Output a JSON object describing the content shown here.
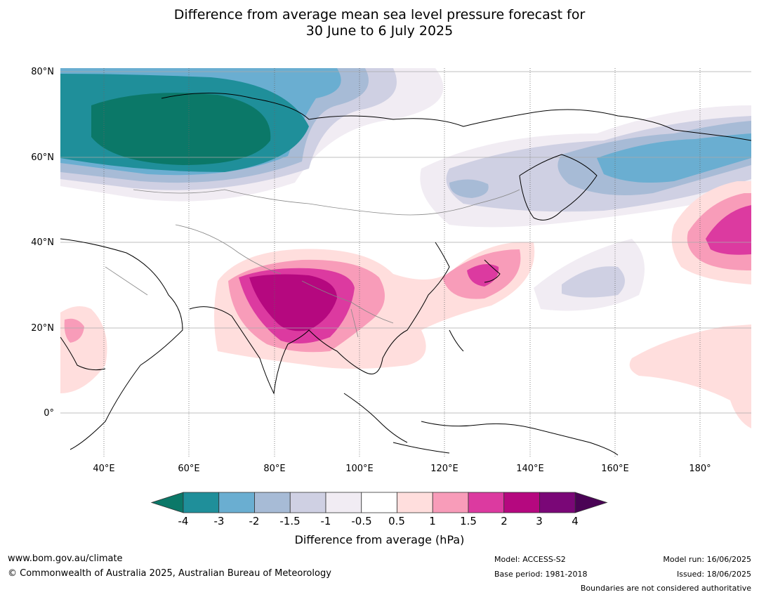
{
  "title": {
    "line1": "Difference from average mean sea level pressure forecast for",
    "line2": "30 June to 6 July 2025"
  },
  "map": {
    "lat_labels": [
      "80°N",
      "60°N",
      "40°N",
      "20°N",
      "0°"
    ],
    "lon_labels": [
      "40°E",
      "60°E",
      "80°E",
      "100°E",
      "120°E",
      "140°E",
      "160°E",
      "180°"
    ],
    "extent": {
      "lon_min": 30,
      "lon_max": 191,
      "lat_min": -10,
      "lat_max": 81
    }
  },
  "colorbar": {
    "ticks": [
      "-4",
      "-3",
      "-2",
      "-1.5",
      "-1",
      "-0.5",
      "0.5",
      "1",
      "1.5",
      "2",
      "3",
      "4"
    ],
    "colors": [
      "#0b7868",
      "#1f8f9a",
      "#6aaed1",
      "#a7bbd6",
      "#cfd0e3",
      "#f1ecf3",
      "#ffffff",
      "#ffdedd",
      "#f89cb9",
      "#dc3aa0",
      "#b5087f",
      "#7a0777",
      "#4a0355"
    ],
    "label": "Difference from average (hPa)"
  },
  "footer": {
    "website": "www.bom.gov.au/climate",
    "copyright": "© Commonwealth of Australia 2025, Australian Bureau of Meteorology",
    "model": "Model: ACCESS-S2",
    "base_period": "Base period: 1981-2018",
    "model_run": "Model run: 16/06/2025",
    "issued": "Issued: 18/06/2025",
    "disclaimer": "Boundaries are not considered authoritative"
  }
}
